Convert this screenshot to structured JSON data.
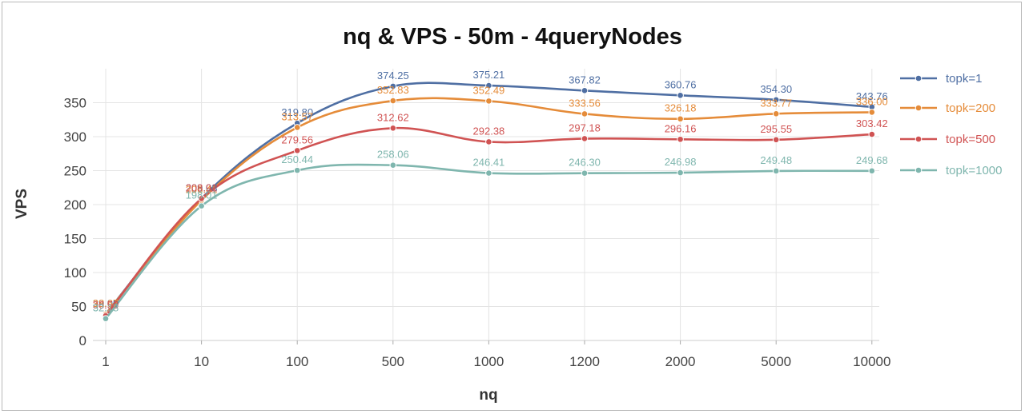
{
  "chart_data": {
    "type": "line",
    "title": "nq & VPS - 50m - 4queryNodes",
    "xlabel": "nq",
    "ylabel": "VPS",
    "categories": [
      "1",
      "10",
      "100",
      "500",
      "1000",
      "1200",
      "2000",
      "5000",
      "10000"
    ],
    "ylim": [
      0,
      400
    ],
    "yticks": [
      0,
      50,
      100,
      150,
      200,
      250,
      300,
      350
    ],
    "grid": true,
    "legend_position": "right",
    "series": [
      {
        "name": "topk=1",
        "color": "#4f6fa3",
        "values": [
          39.09,
          209.03,
          319.8,
          374.25,
          375.21,
          367.82,
          360.76,
          354.3,
          343.76
        ],
        "labels": [
          "39.09",
          "209.03",
          "319.80",
          "374.25",
          "375.21",
          "367.82",
          "360.76",
          "354.30",
          "343.76"
        ]
      },
      {
        "name": "topk=200",
        "color": "#e58c3a",
        "values": [
          38.67,
          206.41,
          313.57,
          352.83,
          352.49,
          333.56,
          326.18,
          333.77,
          336.0
        ],
        "labels": [
          "38.67",
          "206.41",
          "313.57",
          "352.83",
          "352.49",
          "333.56",
          "326.18",
          "333.77",
          "336.00"
        ]
      },
      {
        "name": "topk=500",
        "color": "#d05353",
        "values": [
          36.5,
          208.91,
          279.56,
          312.62,
          292.38,
          297.18,
          296.16,
          295.55,
          303.42
        ],
        "labels": [
          "36.50",
          "208.91",
          "279.56",
          "312.62",
          "292.38",
          "297.18",
          "296.16",
          "295.55",
          "303.42"
        ]
      },
      {
        "name": "topk=1000",
        "color": "#7fb6ae",
        "values": [
          32.18,
          198.01,
          250.44,
          258.06,
          246.41,
          246.3,
          246.98,
          249.48,
          249.68
        ],
        "labels": [
          "32.18",
          "198.01",
          "250.44",
          "258.06",
          "246.41",
          "246.30",
          "246.98",
          "249.48",
          "249.68"
        ]
      }
    ]
  }
}
